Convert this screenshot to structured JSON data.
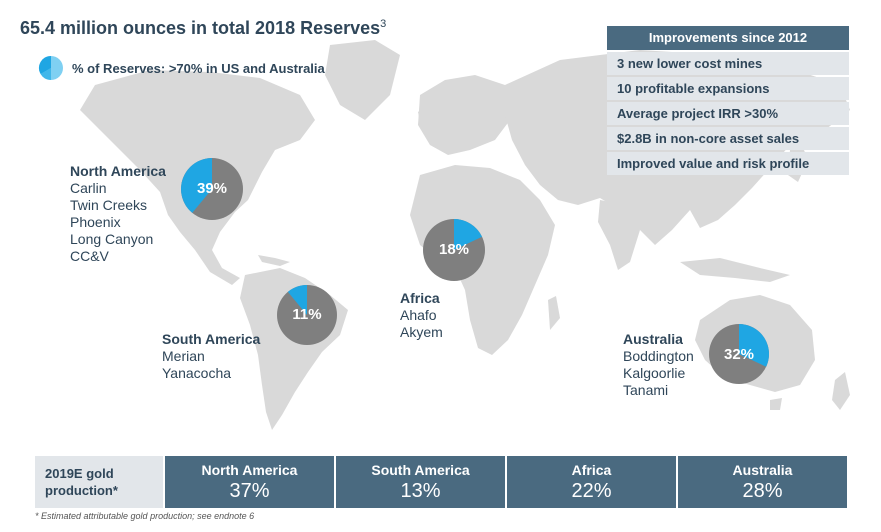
{
  "title": "65.4 million ounces in total 2018 Reserves",
  "title_superscript": "3",
  "legend_text": "% of Reserves: >70% in US and Australia",
  "colors": {
    "accent": "#1fa6e3",
    "pie_gray": "#7f7f7f",
    "map_gray": "#d9d9d9",
    "header": "#4a6a80",
    "light": "#e2e6ea",
    "text": "#2f4659"
  },
  "regions": [
    {
      "name": "North America",
      "mines": [
        "Carlin",
        "Twin Creeks",
        "Phoenix",
        "Long Canyon",
        "CC&V"
      ],
      "pct_label": "39%",
      "pct": 39
    },
    {
      "name": "South America",
      "mines": [
        "Merian",
        "Yanacocha"
      ],
      "pct_label": "11%",
      "pct": 11
    },
    {
      "name": "Africa",
      "mines": [
        "Ahafo",
        "Akyem"
      ],
      "pct_label": "18%",
      "pct": 18
    },
    {
      "name": "Australia",
      "mines": [
        "Boddington",
        "Kalgoorlie",
        "Tanami"
      ],
      "pct_label": "32%",
      "pct": 32
    }
  ],
  "improvements": {
    "header": "Improvements since 2012",
    "items": [
      "3 new lower cost mines",
      "10 profitable expansions",
      "Average project IRR >30%",
      "$2.8B in non-core asset sales",
      "Improved value and risk profile"
    ]
  },
  "production": {
    "label_line1": "2019E gold",
    "label_line2": "production*",
    "cells": [
      {
        "name": "North America",
        "value": "37%"
      },
      {
        "name": "South America",
        "value": "13%"
      },
      {
        "name": "Africa",
        "value": "22%"
      },
      {
        "name": "Australia",
        "value": "28%"
      }
    ]
  },
  "footnote": "* Estimated attributable gold production; see endnote 6"
}
